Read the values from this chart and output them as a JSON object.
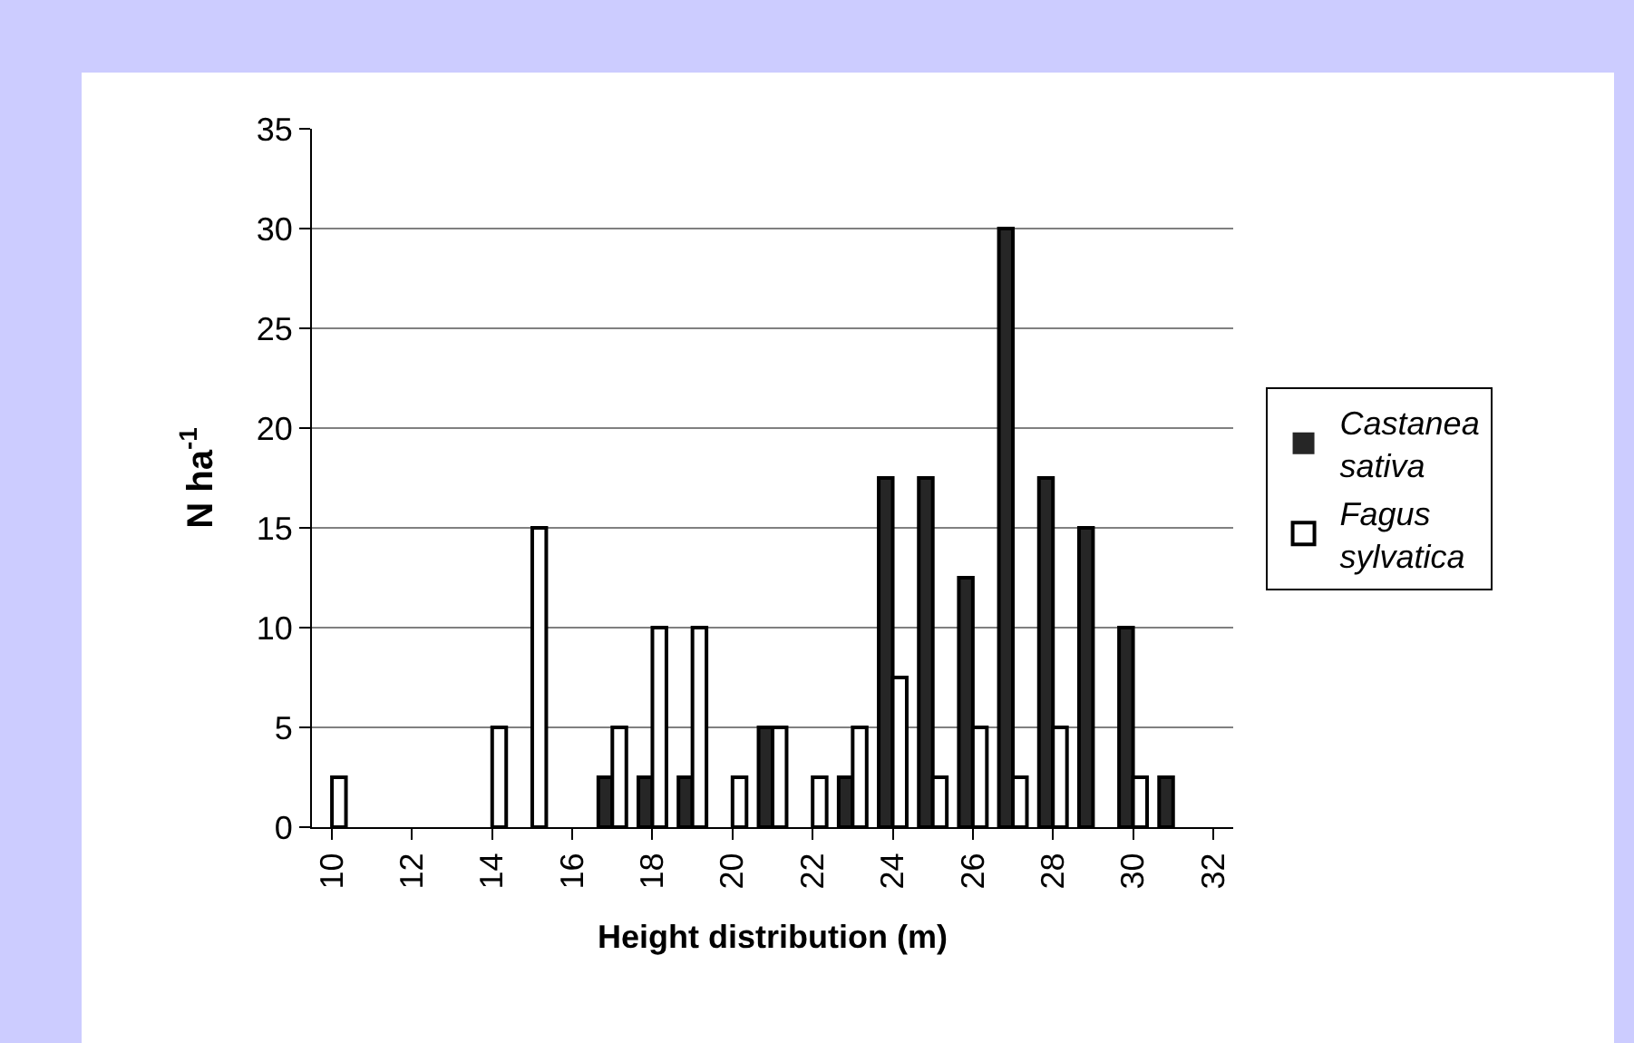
{
  "chart_data": {
    "type": "bar",
    "xlabel": "Height distribution (m)",
    "ylabel": "N ha$^{-1}$",
    "categories": [
      "10",
      null,
      "12",
      null,
      "14",
      null,
      "16",
      null,
      "18",
      null,
      "20",
      null,
      "22",
      null,
      "24",
      null,
      "26",
      null,
      "28",
      null,
      "30",
      null,
      "32"
    ],
    "series": [
      {
        "name": "Castanea sativa",
        "color": "#262626",
        "values": [
          0,
          0,
          0,
          0,
          0,
          0,
          0,
          2.5,
          2.5,
          2.5,
          0,
          5,
          0,
          2.5,
          17.5,
          17.5,
          12.5,
          30,
          17.5,
          15,
          10,
          2.5,
          0
        ]
      },
      {
        "name": "Fagus sylvatica",
        "color": "#ffffff",
        "values": [
          2.5,
          0,
          0,
          0,
          5,
          15,
          0,
          5,
          10,
          10,
          2.5,
          5,
          2.5,
          5,
          7.5,
          2.5,
          5,
          2.5,
          5,
          0,
          2.5,
          0,
          0
        ]
      }
    ],
    "ylim": [
      0,
      35
    ],
    "yticks": [
      0,
      5,
      10,
      15,
      20,
      25,
      30,
      35
    ],
    "grid": "y",
    "legend": "right"
  }
}
